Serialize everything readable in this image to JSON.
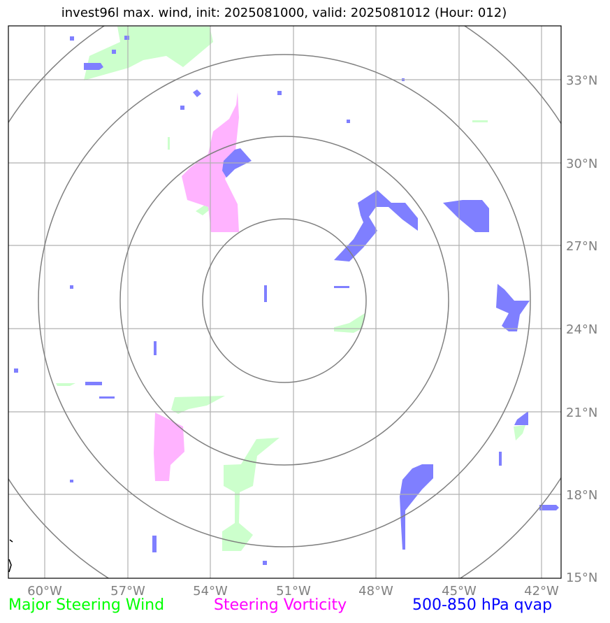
{
  "title": "invest96l max. wind, init: 2025081000, valid: 2025081012 (Hour: 012)",
  "legend": {
    "wind": {
      "label": "Major Steering Wind",
      "color": "#00ff00"
    },
    "vorticity": {
      "label": "Steering Vorticity",
      "color": "#ff00ff"
    },
    "qvap": {
      "label": "500-850 hPa qvap",
      "color": "#0000ff"
    }
  },
  "lon_ticks": [
    "60°W",
    "57°W",
    "54°W",
    "51°W",
    "48°W",
    "45°W",
    "42°W"
  ],
  "lat_ticks": [
    "33°N",
    "30°N",
    "27°N",
    "24°N",
    "21°N",
    "18°N",
    "15°N"
  ],
  "colors": {
    "wind_fill": "#ccffcc",
    "vorticity_fill": "#ffb3ff",
    "qvap_fill": "#7f7fff",
    "grid": "#b0b0b0",
    "range_rings": "#808080"
  }
}
